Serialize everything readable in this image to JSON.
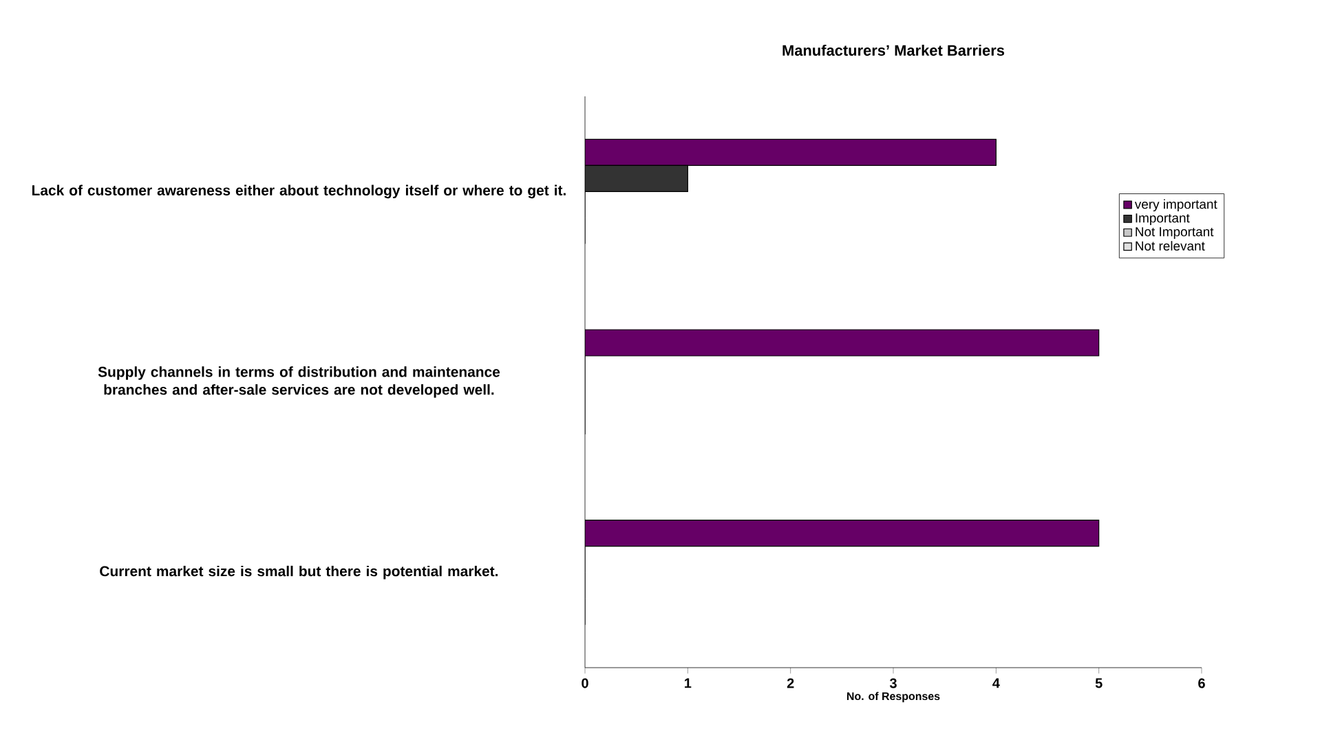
{
  "chart_data": {
    "type": "bar",
    "orientation": "horizontal",
    "title": "Manufacturers’ Market  Barriers",
    "xlabel": "No. of Responses",
    "categories": [
      "Lack of customer awareness either about technology itself or where to get it.",
      "Supply channels in terms of distribution and maintenance branches and after-sale services are not developed well.",
      "Current market size is small but there is potential market."
    ],
    "series": [
      {
        "name": "very important",
        "color": "#660066",
        "values": [
          4,
          5,
          5
        ]
      },
      {
        "name": "Important",
        "color": "#333333",
        "values": [
          1,
          0,
          0
        ]
      },
      {
        "name": "Not Important",
        "color": "#c8c8c8",
        "values": [
          0,
          0,
          0
        ]
      },
      {
        "name": "Not relevant",
        "color": "#e0e0e0",
        "values": [
          0,
          0,
          0
        ]
      }
    ],
    "xlim": [
      0,
      6
    ],
    "xticks": [
      0,
      1,
      2,
      3,
      4,
      5,
      6
    ],
    "grid": false,
    "legend": "right"
  }
}
